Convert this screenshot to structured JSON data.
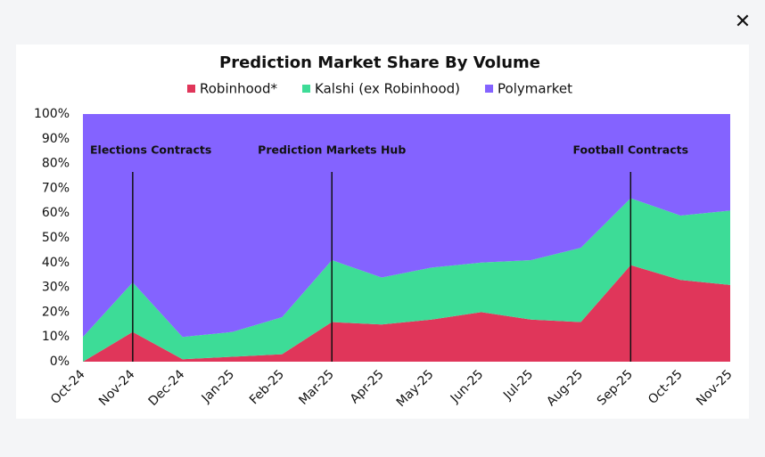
{
  "chart_data": {
    "type": "stacked-area",
    "title": "Prediction Market Share By Volume",
    "categories": [
      "Oct-24",
      "Nov-24",
      "Dec-24",
      "Jan-25",
      "Feb-25",
      "Mar-25",
      "Apr-25",
      "May-25",
      "Jun-25",
      "Jul-25",
      "Aug-25",
      "Sep-25",
      "Oct-25",
      "Nov-25"
    ],
    "series": [
      {
        "name": "Robinhood*",
        "color": "#e0365a",
        "values": [
          0,
          12,
          1,
          2,
          3,
          16,
          15,
          17,
          20,
          17,
          16,
          39,
          33,
          31
        ]
      },
      {
        "name": "Kalshi (ex Robinhood)",
        "color": "#3ddc97",
        "values": [
          10,
          20,
          9,
          10,
          15,
          25,
          19,
          21,
          20,
          24,
          30,
          27,
          26,
          30
        ]
      },
      {
        "name": "Polymarket",
        "color": "#8463ff",
        "values": [
          90,
          68,
          90,
          88,
          82,
          59,
          66,
          62,
          60,
          59,
          54,
          34,
          41,
          39
        ]
      }
    ],
    "ylim": [
      0,
      100
    ],
    "yticks": [
      {
        "value": 0,
        "label": "0%"
      },
      {
        "value": 10,
        "label": "10%"
      },
      {
        "value": 20,
        "label": "20%"
      },
      {
        "value": 30,
        "label": "30%"
      },
      {
        "value": 40,
        "label": "40%"
      },
      {
        "value": 50,
        "label": "50%"
      },
      {
        "value": 60,
        "label": "60%"
      },
      {
        "value": 70,
        "label": "70%"
      },
      {
        "value": 80,
        "label": "80%"
      },
      {
        "value": 90,
        "label": "90%"
      },
      {
        "value": 100,
        "label": "100%"
      }
    ],
    "annotations": [
      {
        "text": "Elections Contracts",
        "x": "Nov-24"
      },
      {
        "text": "Prediction Markets Hub",
        "x": "Mar-25"
      },
      {
        "text": "Football Contracts",
        "x": "Sep-25"
      }
    ],
    "legend": "top"
  }
}
